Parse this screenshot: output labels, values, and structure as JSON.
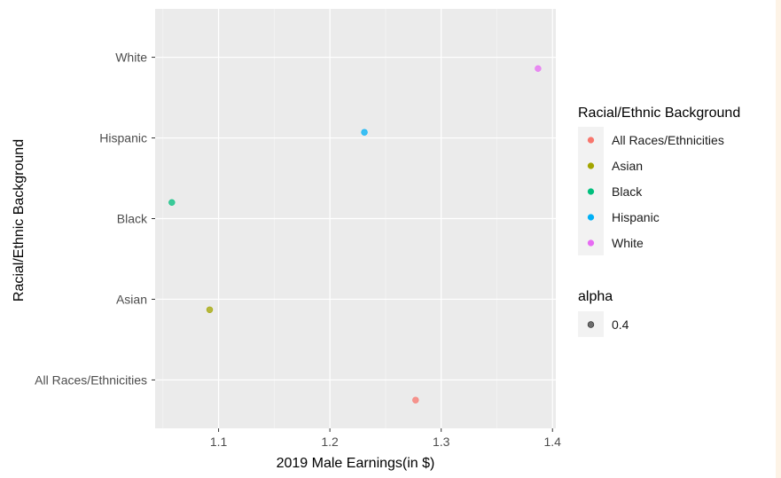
{
  "chart_data": {
    "type": "scatter",
    "xlabel": "2019 Male Earnings(in $)",
    "ylabel": "Racial/Ethnic Background",
    "xlim": [
      1.043,
      1.403
    ],
    "x_ticks": [
      "1.1",
      "1.2",
      "1.3",
      "1.4"
    ],
    "x_tick_values": [
      1.1,
      1.2,
      1.3,
      1.4
    ],
    "categories": [
      "All Races/Ethnicities",
      "Asian",
      "Black",
      "Hispanic",
      "White"
    ],
    "points": [
      {
        "category": "All Races/Ethnicities",
        "x": 1.277,
        "y_jitter": 0.25,
        "color": "#F8766D"
      },
      {
        "category": "Asian",
        "x": 1.092,
        "y_jitter": 0.13,
        "color": "#A3A500"
      },
      {
        "category": "Black",
        "x": 1.058,
        "y_jitter": -0.2,
        "color": "#00BF7D"
      },
      {
        "category": "Hispanic",
        "x": 1.231,
        "y_jitter": -0.07,
        "color": "#00B0F6"
      },
      {
        "category": "White",
        "x": 1.387,
        "y_jitter": 0.14,
        "color": "#E76BF3"
      }
    ],
    "point_alpha": 0.4,
    "grid": true,
    "legend_position": "right",
    "legend": {
      "title": "Racial/Ethnic Background",
      "entries": [
        {
          "label": "All Races/Ethnicities",
          "color": "#F8766D"
        },
        {
          "label": "Asian",
          "color": "#A3A500"
        },
        {
          "label": "Black",
          "color": "#00BF7D"
        },
        {
          "label": "Hispanic",
          "color": "#00B0F6"
        },
        {
          "label": "White",
          "color": "#E76BF3"
        }
      ]
    },
    "alpha_legend": {
      "title": "alpha",
      "entries": [
        {
          "label": "0.4",
          "color": "#000000"
        }
      ]
    }
  }
}
